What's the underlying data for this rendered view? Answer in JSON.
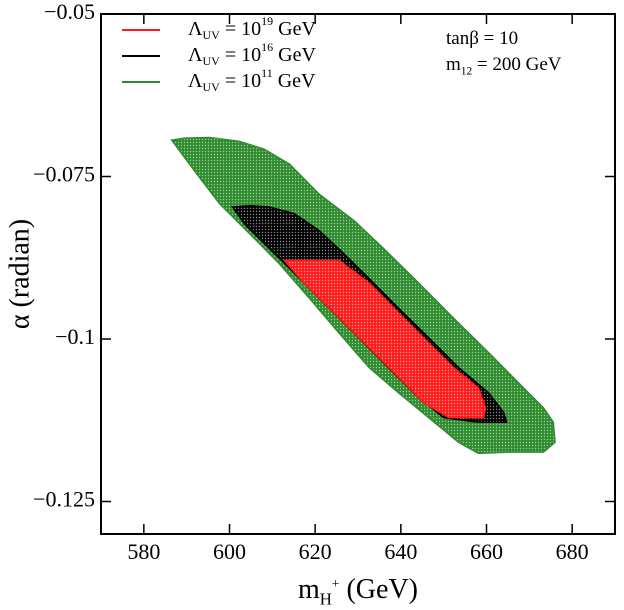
{
  "chart_data": {
    "type": "region",
    "xlabel": {
      "base": "m",
      "sub": "H",
      "subsup": "+",
      "rest": " (GeV)"
    },
    "ylabel": "α (radian)",
    "annotations": [
      {
        "base": "tanβ = 10"
      },
      {
        "base": "m",
        "sub": "12",
        "rest": " = 200 GeV"
      }
    ],
    "xlim": [
      570,
      690
    ],
    "ylim": [
      -0.13,
      -0.05
    ],
    "xticks": [
      580,
      600,
      620,
      640,
      660,
      680
    ],
    "yticks": [
      {
        "value": -0.125,
        "label": "−0.125"
      },
      {
        "value": -0.1,
        "label": "−0.1"
      },
      {
        "value": -0.075,
        "label": "−0.075"
      },
      {
        "value": -0.05,
        "label": "−0.05"
      }
    ],
    "legend": "upper left",
    "series": [
      {
        "name": {
          "base": "Λ",
          "sub": "UV",
          "mid": " = 10",
          "sup": "11",
          "rest": " GeV"
        },
        "color": "#2e8b2e",
        "x": [
          586.5,
          589.5,
          595.3,
          602.3,
          608.1,
          614.0,
          620.9,
          629.1,
          636.0,
          644.2,
          652.3,
          660.5,
          667.4,
          673.3,
          675.6,
          676.0,
          673.3,
          665.1,
          658.1,
          653.5,
          646.5,
          639.5,
          632.6,
          625.6,
          618.6,
          611.6,
          604.7,
          597.7,
          591.9
        ],
        "y": [
          -0.0694,
          -0.0691,
          -0.069,
          -0.0696,
          -0.0708,
          -0.0731,
          -0.0777,
          -0.0818,
          -0.0861,
          -0.0914,
          -0.0968,
          -0.1021,
          -0.1067,
          -0.1106,
          -0.1128,
          -0.1159,
          -0.1174,
          -0.1174,
          -0.1176,
          -0.1159,
          -0.1121,
          -0.1083,
          -0.1044,
          -0.0991,
          -0.0937,
          -0.0884,
          -0.0838,
          -0.0792,
          -0.0742
        ]
      },
      {
        "name": {
          "base": "Λ",
          "sub": "UV",
          "mid": " = 10",
          "sup": "16",
          "rest": " GeV"
        },
        "color": "#000000",
        "x": [
          600.7,
          604.7,
          609.3,
          615.1,
          620.9,
          626.7,
          632.6,
          639.5,
          646.5,
          653.5,
          660.5,
          664.0,
          664.7,
          658.1,
          650.0,
          643.0,
          636.0,
          629.1,
          620.9,
          614.0,
          608.1,
          603.5
        ],
        "y": [
          -0.0797,
          -0.0795,
          -0.0797,
          -0.0807,
          -0.0833,
          -0.0869,
          -0.0907,
          -0.0953,
          -0.0998,
          -0.1044,
          -0.1083,
          -0.1113,
          -0.1128,
          -0.1128,
          -0.1121,
          -0.1083,
          -0.1037,
          -0.0991,
          -0.0937,
          -0.0891,
          -0.0853,
          -0.0823
        ]
      },
      {
        "name": {
          "base": "Λ",
          "sub": "UV",
          "mid": " = 10",
          "sup": "19",
          "rest": " GeV"
        },
        "color": "#ff1a1a",
        "x": [
          612.8,
          625.6,
          632.6,
          639.5,
          646.5,
          652.3,
          658.1,
          659.8,
          659.3,
          651.2,
          645.3,
          638.4,
          631.4,
          624.4,
          617.4
        ],
        "y": [
          -0.0879,
          -0.0879,
          -0.0914,
          -0.096,
          -0.1006,
          -0.1044,
          -0.1075,
          -0.1106,
          -0.1121,
          -0.1121,
          -0.1098,
          -0.1052,
          -0.1006,
          -0.096,
          -0.0914
        ]
      }
    ]
  }
}
